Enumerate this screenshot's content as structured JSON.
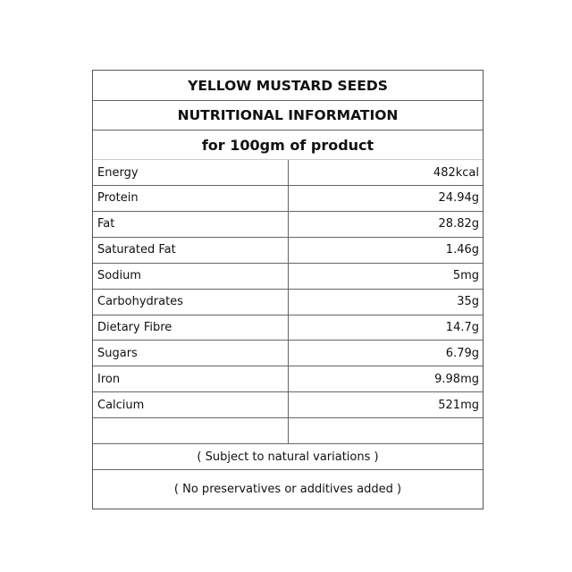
{
  "title": "YELLOW MUSTARD SEEDS",
  "subtitle": "NUTRITIONAL INFORMATION",
  "basis": "for 100gm of product",
  "rows": [
    {
      "label": "Energy",
      "value": "482kcal"
    },
    {
      "label": "Protein",
      "value": "24.94g"
    },
    {
      "label": "Fat",
      "value": "28.82g"
    },
    {
      "label": "Saturated Fat",
      "value": "1.46g"
    },
    {
      "label": "Sodium",
      "value": "5mg"
    },
    {
      "label": "Carbohydrates",
      "value": "35g"
    },
    {
      "label": "Dietary Fibre",
      "value": "14.7g"
    },
    {
      "label": "Sugars",
      "value": "6.79g"
    },
    {
      "label": "Iron",
      "value": "9.98mg"
    },
    {
      "label": "Calcium",
      "value": "521mg"
    },
    {
      "label": "",
      "value": ""
    }
  ],
  "note1": "( Subject to natural variations )",
  "note2": "( No preservatives or additives added )"
}
